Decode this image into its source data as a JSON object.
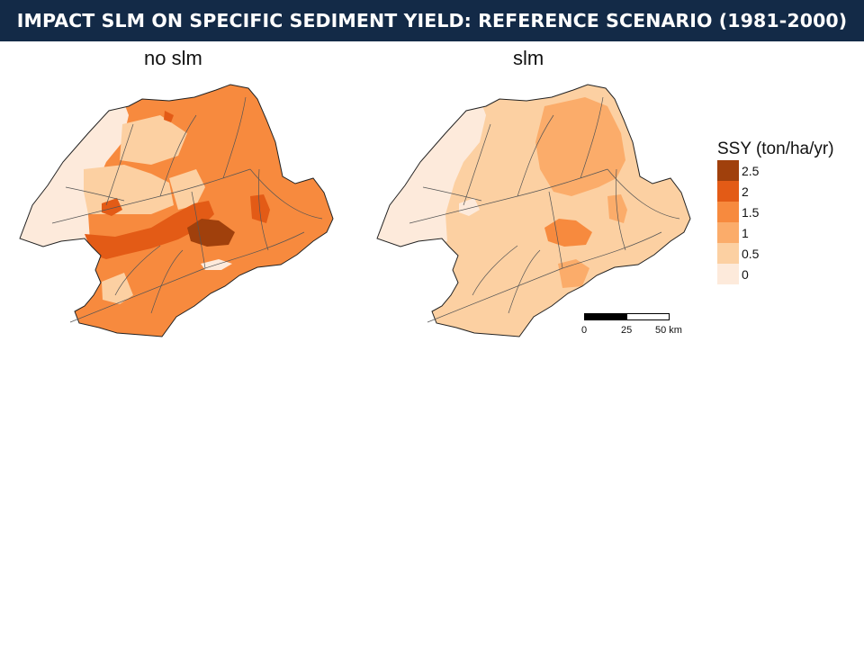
{
  "header": {
    "title": "IMPACT SLM ON SPECIFIC SEDIMENT YIELD: REFERENCE SCENARIO (1981-2000)"
  },
  "maps": [
    {
      "id": "no_slm",
      "title": "no slm"
    },
    {
      "id": "slm",
      "title": "slm"
    }
  ],
  "legend": {
    "title": "SSY (ton/ha/yr)",
    "classes": [
      {
        "label": "2.5",
        "color": "#a0400c"
      },
      {
        "label": "2",
        "color": "#e35b16"
      },
      {
        "label": "1.5",
        "color": "#f78a3e"
      },
      {
        "label": "1",
        "color": "#fbac6a"
      },
      {
        "label": "0.5",
        "color": "#fcd0a2"
      },
      {
        "label": "0",
        "color": "#fdeadb"
      }
    ]
  },
  "scalebar": {
    "labels": [
      "0",
      "25",
      "50 km"
    ]
  }
}
